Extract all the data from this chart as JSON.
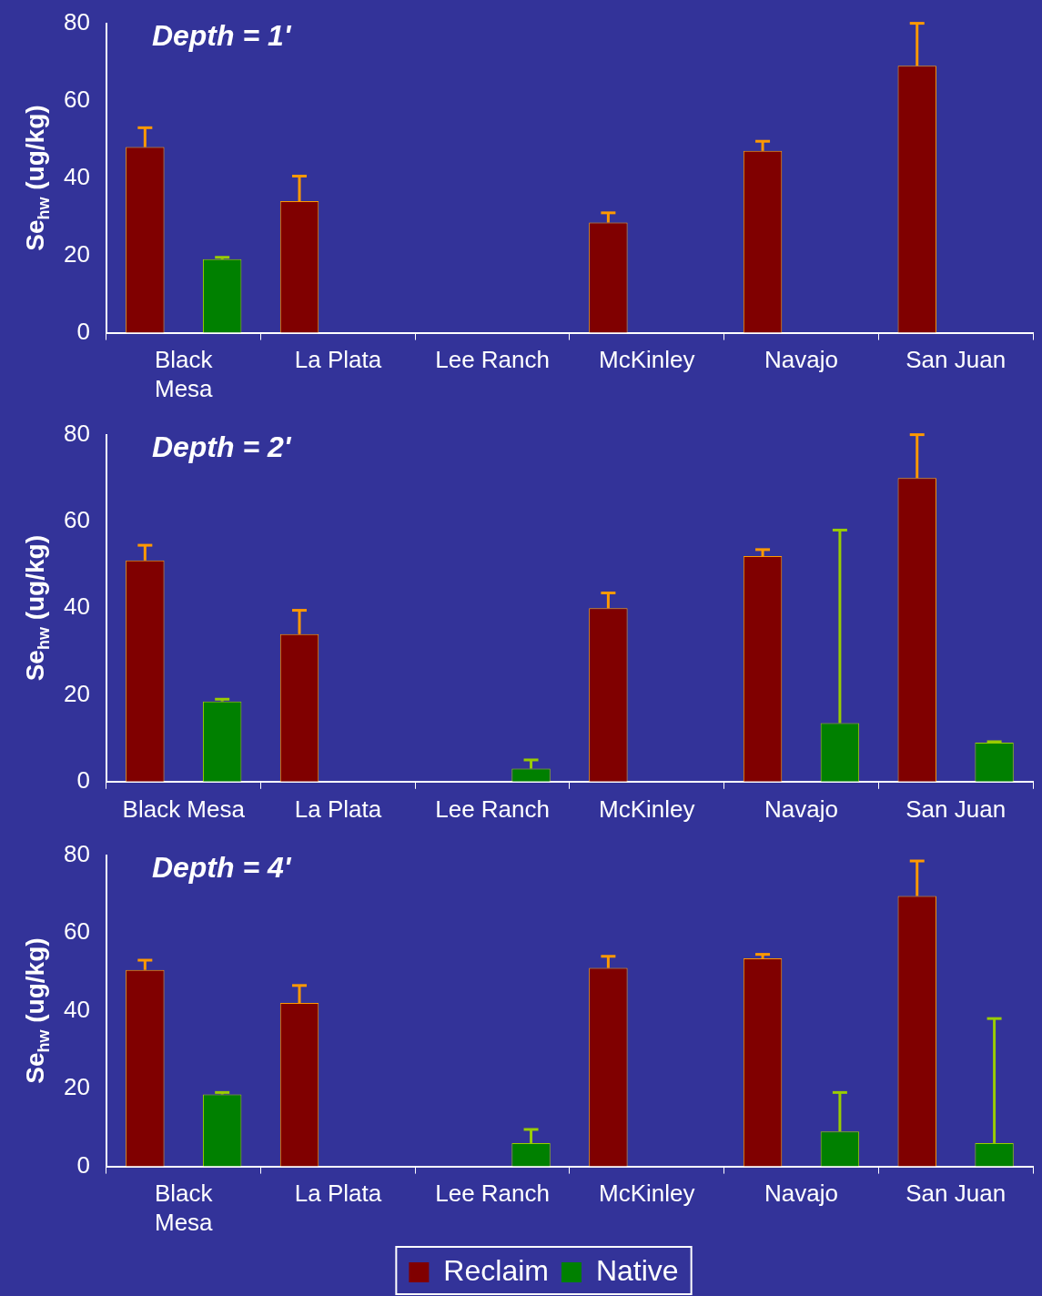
{
  "chart_data": [
    {
      "type": "bar",
      "title": "Depth = 1'",
      "ylabel": "Se$_{hw}$ (ug/kg)",
      "categories": [
        "Black Mesa",
        "La Plata",
        "Lee Ranch",
        "McKinley",
        "Navajo",
        "San Juan"
      ],
      "ylim": [
        0,
        80
      ],
      "yticks": [
        0,
        20,
        40,
        60,
        80
      ],
      "grid": false,
      "legend": false,
      "series": [
        {
          "color": "#800000",
          "values": [
            48,
            34,
            null,
            28.5,
            47,
            69
          ],
          "errors": [
            [
              48,
              53
            ],
            [
              34,
              40.5
            ],
            null,
            [
              28.5,
              31
            ],
            [
              47,
              49.5
            ],
            [
              69,
              80
            ]
          ]
        },
        {
          "color": "#008000",
          "values": [
            19,
            null,
            null,
            null,
            null,
            null
          ],
          "errors": [
            [
              19,
              19.5
            ],
            null,
            null,
            null,
            null,
            null
          ]
        }
      ]
    },
    {
      "type": "bar",
      "title": "Depth = 2'",
      "ylabel": "Se$_{hw}$ (ug/kg)",
      "categories": [
        "Black Mesa",
        "La Plata",
        "Lee Ranch",
        "McKinley",
        "Navajo",
        "San Juan"
      ],
      "ylim": [
        0,
        80
      ],
      "yticks": [
        0,
        20,
        40,
        60,
        80
      ],
      "grid": false,
      "legend": false,
      "series": [
        {
          "color": "#800000",
          "values": [
            51,
            34,
            null,
            40,
            52,
            70
          ],
          "errors": [
            [
              51,
              54.5
            ],
            [
              34,
              39.5
            ],
            null,
            [
              40,
              43.5
            ],
            [
              52,
              53.5
            ],
            [
              70,
              80
            ]
          ]
        },
        {
          "color": "#008000",
          "values": [
            18.5,
            null,
            3,
            null,
            13.5,
            9
          ],
          "errors": [
            [
              18.5,
              19
            ],
            null,
            [
              3,
              5
            ],
            null,
            [
              13.5,
              58
            ],
            [
              9,
              9.2
            ]
          ]
        }
      ]
    },
    {
      "type": "bar",
      "title": "Depth = 4'",
      "ylabel": "Se$_{hw}$ (ug/kg)",
      "categories": [
        "Black Mesa",
        "La Plata",
        "Lee Ranch",
        "McKinley",
        "Navajo",
        "San Juan"
      ],
      "ylim": [
        0,
        80
      ],
      "yticks": [
        0,
        20,
        40,
        60,
        80
      ],
      "grid": false,
      "legend": "bottom",
      "series": [
        {
          "name": "Reclaim",
          "color": "#800000",
          "values": [
            50.5,
            42,
            null,
            51,
            53.5,
            69.5
          ],
          "errors": [
            [
              50.5,
              53
            ],
            [
              42,
              46.5
            ],
            null,
            [
              51,
              54
            ],
            [
              53.5,
              54.5
            ],
            [
              69.5,
              78.5
            ]
          ]
        },
        {
          "name": "Native",
          "color": "#008000",
          "values": [
            18.5,
            null,
            6,
            null,
            9,
            6
          ],
          "errors": [
            [
              18.5,
              19
            ],
            null,
            [
              6,
              9.5
            ],
            null,
            [
              9,
              19
            ],
            [
              6,
              38
            ]
          ]
        }
      ]
    }
  ]
}
